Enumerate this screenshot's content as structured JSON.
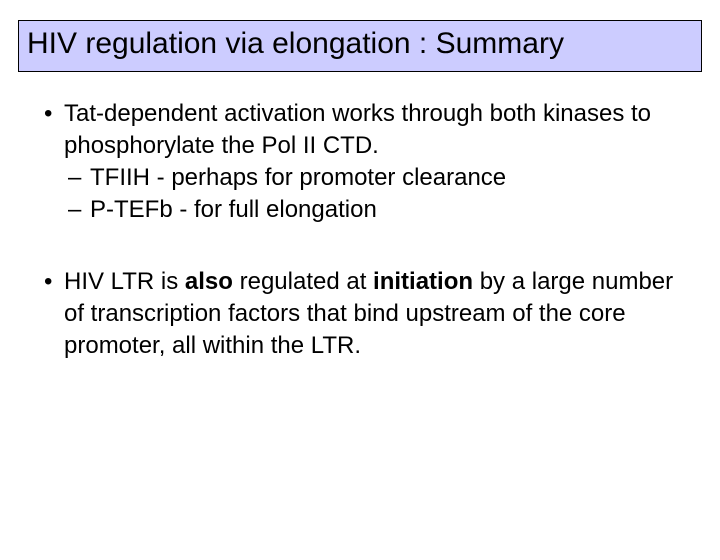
{
  "colors": {
    "title_bg": "#ccccff",
    "title_border": "#000000",
    "page_bg": "#ffffff",
    "text": "#000000"
  },
  "typography": {
    "title_fontsize": 30,
    "body_fontsize": 24,
    "body_lineheight": 32,
    "font_family": "Arial"
  },
  "title": "HIV regulation via elongation : Summary",
  "bullets": [
    {
      "text": "Tat-dependent activation works through both kinases to phosphorylate the Pol II CTD.",
      "subs": [
        "TFIIH - perhaps for promoter clearance",
        "P-TEFb - for full elongation"
      ]
    },
    {
      "text_pre": "HIV LTR is ",
      "text_bold1": "also",
      "text_mid": " regulated at ",
      "text_bold2": "initiation",
      "text_post": " by a large number of transcription factors that bind upstream of the core promoter, all within the LTR.",
      "subs": []
    }
  ]
}
